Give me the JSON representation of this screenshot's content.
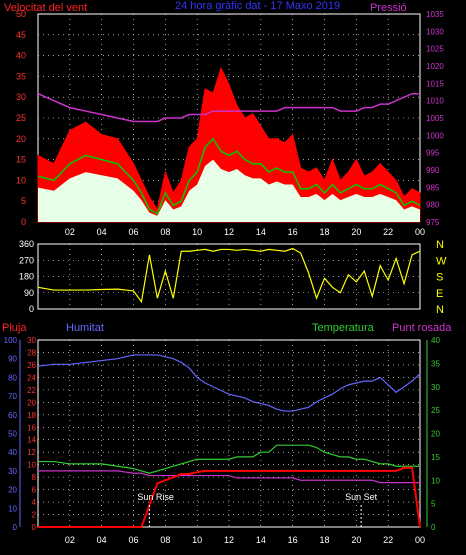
{
  "header": {
    "left_title": "Velocitat del vent",
    "center_title": "24 hora gràfic dat - 17 Maxo 2019",
    "right_title": "Pressió"
  },
  "bottom_header": {
    "rain": "Pluja",
    "humidity": "Humitat",
    "temperature": "Temperatura",
    "dewpoint": "Punt rosada"
  },
  "annotations": {
    "sunrise": "Sun Rise",
    "sunset": "Sun Set"
  },
  "colors": {
    "gust": "#ff0000",
    "average": "#00cc00",
    "wind_low": "#e6ffe6",
    "pressure": "#cc33cc",
    "direction": "#ffff00",
    "humidity": "#6666ff",
    "temperature": "#33cc33",
    "dewpoint": "#cc33cc",
    "rain": "#ff0000",
    "grid": "#ffffff",
    "text": "#ffffff"
  },
  "chart_data": [
    {
      "type": "area",
      "title": "",
      "x_ticks": [
        "02",
        "04",
        "06",
        "08",
        "10",
        "12",
        "14",
        "16",
        "18",
        "20",
        "22",
        "00"
      ],
      "y_left_ticks": [
        0,
        5,
        10,
        15,
        20,
        25,
        30,
        35,
        40,
        45,
        50
      ],
      "y_right_ticks": [
        975,
        980,
        985,
        990,
        995,
        1000,
        1005,
        1010,
        1015,
        1020,
        1025,
        1030,
        1035
      ],
      "ylim_left": [
        0,
        50
      ],
      "ylim_right": [
        975,
        1035
      ],
      "hours": [
        0,
        1,
        2,
        3,
        4,
        5,
        6,
        6.5,
        7,
        7.5,
        8,
        8.5,
        9,
        9.5,
        10,
        10.5,
        11,
        11.5,
        12,
        12.5,
        13,
        13.5,
        14,
        14.5,
        15,
        15.5,
        16,
        16.5,
        17,
        17.5,
        18,
        18.5,
        19,
        19.5,
        20,
        20.5,
        21,
        21.5,
        22,
        22.5,
        23,
        23.5,
        24
      ],
      "series": [
        {
          "name": "Velocitat del vent",
          "kind": "gust",
          "values": [
            16,
            14,
            22,
            24,
            21,
            20,
            14,
            10,
            6,
            3,
            12,
            7,
            10,
            18,
            20,
            32,
            31,
            37,
            33,
            28,
            25,
            26,
            23,
            20,
            20,
            19,
            21,
            13,
            12,
            13,
            10,
            15,
            10,
            12,
            15,
            11,
            12,
            14,
            12,
            10,
            6,
            8,
            7
          ]
        },
        {
          "name": "",
          "kind": "average",
          "values": [
            11,
            10,
            14,
            16,
            15,
            14,
            10,
            7,
            3,
            2,
            7,
            4,
            5,
            10,
            12,
            18,
            20,
            17,
            16,
            17,
            15,
            14,
            14,
            12,
            13,
            12,
            12,
            8,
            8,
            9,
            7,
            9,
            7,
            8,
            9,
            8,
            8,
            9,
            8,
            7,
            4,
            5,
            4
          ]
        },
        {
          "name": "Pressió",
          "kind": "pressure",
          "values": [
            1012,
            1010,
            1008,
            1007,
            1006,
            1005,
            1004,
            1004,
            1004,
            1004,
            1005,
            1005,
            1005,
            1006,
            1006,
            1006,
            1007,
            1007,
            1007,
            1007,
            1007,
            1007,
            1007,
            1007,
            1007,
            1008,
            1008,
            1008,
            1008,
            1008,
            1008,
            1008,
            1007,
            1007,
            1007,
            1008,
            1008,
            1009,
            1009,
            1010,
            1011,
            1012,
            1012
          ]
        }
      ]
    },
    {
      "type": "line",
      "title": "",
      "y_left_ticks": [
        0,
        90,
        180,
        270,
        360
      ],
      "y_right_labels": [
        "N",
        "W",
        "S",
        "E",
        "N"
      ],
      "ylim": [
        0,
        360
      ],
      "hours": [
        0,
        1,
        2,
        3,
        4,
        5,
        6,
        6.5,
        7,
        7.5,
        8,
        8.5,
        9,
        9.5,
        10,
        10.5,
        11,
        11.5,
        12,
        12.5,
        13,
        13.5,
        14,
        14.5,
        15,
        15.5,
        16,
        16.5,
        17,
        17.5,
        18,
        18.5,
        19,
        19.5,
        20,
        20.5,
        21,
        21.5,
        22,
        22.5,
        23,
        23.5,
        24
      ],
      "series": [
        {
          "name": "",
          "kind": "direction",
          "values": [
            120,
            105,
            105,
            105,
            108,
            110,
            100,
            40,
            300,
            60,
            210,
            60,
            320,
            320,
            325,
            330,
            320,
            330,
            330,
            325,
            330,
            325,
            320,
            330,
            325,
            320,
            335,
            310,
            200,
            60,
            170,
            120,
            90,
            190,
            150,
            210,
            70,
            240,
            160,
            280,
            140,
            300,
            320
          ]
        }
      ]
    },
    {
      "type": "line",
      "title": "",
      "x_ticks": [
        "02",
        "04",
        "06",
        "08",
        "10",
        "12",
        "14",
        "16",
        "18",
        "20",
        "22",
        "00"
      ],
      "y_humidity_ticks": [
        0,
        10,
        20,
        30,
        40,
        50,
        60,
        70,
        80,
        90,
        100
      ],
      "y_rain_ticks": [
        0,
        2,
        4,
        6,
        8,
        10,
        12,
        14,
        16,
        18,
        20,
        22,
        24,
        26,
        28,
        30
      ],
      "y_temp_ticks": [
        0,
        5,
        10,
        15,
        20,
        25,
        30,
        35,
        40
      ],
      "hours": [
        0,
        1,
        2,
        3,
        4,
        5,
        6,
        6.5,
        7,
        7.5,
        8,
        8.5,
        9,
        9.5,
        10,
        10.5,
        11,
        11.5,
        12,
        12.5,
        13,
        13.5,
        14,
        14.5,
        15,
        15.5,
        16,
        16.5,
        17,
        17.5,
        18,
        18.5,
        19,
        19.5,
        20,
        20.5,
        21,
        21.5,
        22,
        22.5,
        23,
        23.5,
        24
      ],
      "series": [
        {
          "name": "Humitat",
          "kind": "humidity",
          "axis": "humidity",
          "values": [
            86,
            87,
            87,
            88,
            89,
            90,
            92,
            92,
            92,
            92,
            91,
            90,
            88,
            85,
            80,
            77,
            75,
            73,
            71,
            70,
            69,
            67,
            66,
            65,
            63,
            62,
            62,
            63,
            64,
            67,
            69,
            71,
            74,
            76,
            77,
            78,
            78,
            80,
            76,
            72,
            75,
            78,
            82
          ]
        },
        {
          "name": "Temperatura",
          "kind": "temperature",
          "axis": "temp",
          "values": [
            14,
            14,
            13.5,
            13.5,
            13.5,
            13,
            12.5,
            12,
            11.5,
            12,
            12.5,
            13,
            13.5,
            14,
            14.5,
            14.5,
            14.5,
            14.5,
            14.5,
            15,
            15,
            15,
            16,
            16,
            17.5,
            17.5,
            17.5,
            17.5,
            17.5,
            17,
            16,
            15.5,
            15,
            15,
            14.5,
            14.5,
            14,
            13.5,
            13.5,
            13,
            13,
            13,
            13
          ]
        },
        {
          "name": "Punt rosada",
          "kind": "dewpoint",
          "axis": "temp",
          "values": [
            12,
            12,
            12,
            12,
            12,
            12,
            11.5,
            11.5,
            11,
            11,
            11,
            11,
            11,
            11,
            11,
            11,
            11,
            11,
            11,
            10.5,
            10.5,
            10.5,
            10.5,
            10.5,
            10.5,
            10.5,
            10.5,
            10,
            10,
            10,
            10,
            10,
            10,
            10,
            10,
            10,
            10,
            9.5,
            9.5,
            9.5,
            9.5,
            9.5,
            9.5
          ]
        },
        {
          "name": "Pluja",
          "kind": "rain",
          "axis": "rain",
          "values": [
            0,
            0,
            0,
            0,
            0,
            0,
            0,
            0,
            3.5,
            7,
            7.5,
            8,
            8.5,
            8.5,
            8.8,
            9,
            9,
            9,
            9,
            9,
            9,
            9,
            9,
            9,
            9,
            9,
            9,
            9,
            9,
            9,
            9,
            9,
            9,
            9,
            9,
            9,
            9,
            9,
            9,
            9,
            9.5,
            9.5,
            0
          ]
        }
      ],
      "sunrise_hour": 7,
      "sunset_hour": 20.3
    }
  ]
}
